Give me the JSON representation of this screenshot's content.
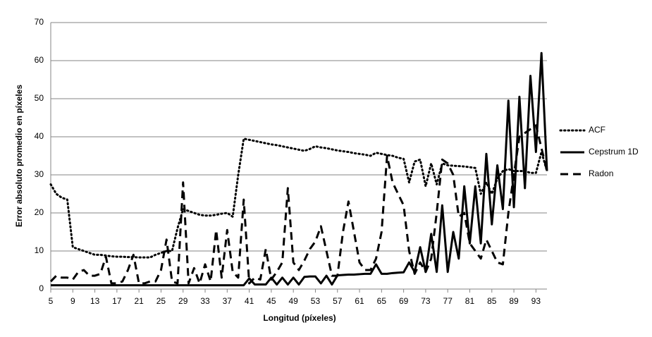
{
  "chart_data": {
    "type": "line",
    "x_label": "Longitud (píxeles)",
    "y_label": "Error absoluto promedio en píxeles",
    "x": [
      5,
      6,
      7,
      8,
      9,
      10,
      11,
      12,
      13,
      14,
      15,
      16,
      17,
      18,
      19,
      20,
      21,
      22,
      23,
      24,
      25,
      26,
      27,
      28,
      29,
      30,
      31,
      32,
      33,
      34,
      35,
      36,
      37,
      38,
      39,
      40,
      41,
      42,
      43,
      44,
      45,
      46,
      47,
      48,
      49,
      50,
      51,
      52,
      53,
      54,
      55,
      56,
      57,
      58,
      59,
      60,
      61,
      62,
      63,
      64,
      65,
      66,
      67,
      68,
      69,
      70,
      71,
      72,
      73,
      74,
      75,
      76,
      77,
      78,
      79,
      80,
      81,
      82,
      83,
      84,
      85,
      86,
      87,
      88,
      89,
      90,
      91,
      92,
      93,
      94,
      95
    ],
    "xlim": [
      5,
      95
    ],
    "xticks": [
      5,
      9,
      13,
      17,
      21,
      25,
      29,
      33,
      37,
      41,
      45,
      49,
      53,
      57,
      61,
      65,
      69,
      73,
      77,
      81,
      85,
      89,
      93
    ],
    "ylim": [
      0,
      70
    ],
    "yticks": [
      0,
      10,
      20,
      30,
      40,
      50,
      60,
      70
    ],
    "grid": true,
    "legend": "right",
    "series": [
      {
        "name": "ACF",
        "color": "#000000",
        "style": "dotted",
        "values": [
          27.5,
          25,
          24,
          23.5,
          11,
          10.5,
          10,
          9.5,
          9,
          9,
          8.8,
          8.6,
          8.5,
          8.5,
          8.4,
          8.4,
          8.3,
          8.3,
          8.3,
          9,
          9.5,
          10,
          10,
          16,
          21,
          20.5,
          20,
          19.5,
          19.3,
          19.3,
          19.5,
          19.8,
          20,
          19,
          30,
          39.5,
          39.2,
          38.9,
          38.6,
          38.3,
          38,
          37.8,
          37.5,
          37.2,
          36.9,
          36.6,
          36.3,
          36.8,
          37.5,
          37.2,
          37,
          36.7,
          36.4,
          36.2,
          36,
          35.7,
          35.5,
          35.3,
          35,
          35.8,
          35.5,
          35.2,
          35,
          34.5,
          34.2,
          28,
          33.5,
          34,
          27,
          33,
          27.5,
          33,
          32.5,
          32.4,
          32.3,
          32.2,
          32,
          31.8,
          25,
          28,
          25,
          29,
          31,
          31.5,
          31,
          31,
          31,
          30.5,
          30.5,
          36,
          31
        ]
      },
      {
        "name": "Cepstrum 1D",
        "color": "#000000",
        "style": "solid",
        "values": [
          1,
          1,
          1,
          1,
          1,
          1,
          1,
          1,
          1,
          1,
          1,
          1,
          1,
          1,
          1,
          1,
          1,
          1,
          1,
          1,
          1,
          1,
          1,
          1,
          1,
          1,
          1,
          1,
          1,
          1,
          1,
          1,
          1,
          1,
          1,
          1,
          2.8,
          1.2,
          1.2,
          1.2,
          3,
          1.2,
          3,
          1.2,
          3,
          1.2,
          3.2,
          3.3,
          3.3,
          1.5,
          3.5,
          1.2,
          3.6,
          3.7,
          3.8,
          3.8,
          3.9,
          4,
          4,
          6.5,
          4,
          4,
          4.2,
          4.3,
          4.4,
          7,
          4.5,
          11,
          4.5,
          14.5,
          4.5,
          22,
          4.5,
          15,
          8,
          27,
          12,
          27,
          12,
          35.5,
          17,
          32.5,
          21,
          49.5,
          21.5,
          50.5,
          26.5,
          56,
          36,
          62,
          31
        ]
      },
      {
        "name": "Radon",
        "color": "#000000",
        "style": "dashed",
        "values": [
          2,
          3.5,
          3,
          3,
          2.5,
          4.5,
          5,
          3.5,
          3.5,
          4,
          8.5,
          1.5,
          1.5,
          2,
          5,
          9,
          1.5,
          1.5,
          2,
          2,
          5,
          13,
          2,
          1.5,
          28,
          1.5,
          5.5,
          1.5,
          6.5,
          2,
          15.5,
          3,
          15.5,
          4.5,
          3,
          23.5,
          1.5,
          3,
          2.5,
          10.5,
          2.5,
          4.5,
          7,
          26.5,
          7,
          5,
          7.5,
          10.5,
          12.5,
          16.5,
          10,
          3.5,
          3.5,
          15,
          23,
          15,
          7,
          5,
          5,
          8,
          15,
          35,
          28,
          25,
          22,
          10,
          4,
          7,
          4.5,
          8,
          20,
          34,
          33,
          30,
          19,
          20,
          12,
          10,
          8,
          13,
          10,
          7,
          6.5,
          20,
          30,
          40,
          41,
          42,
          43,
          37,
          31
        ]
      }
    ]
  }
}
